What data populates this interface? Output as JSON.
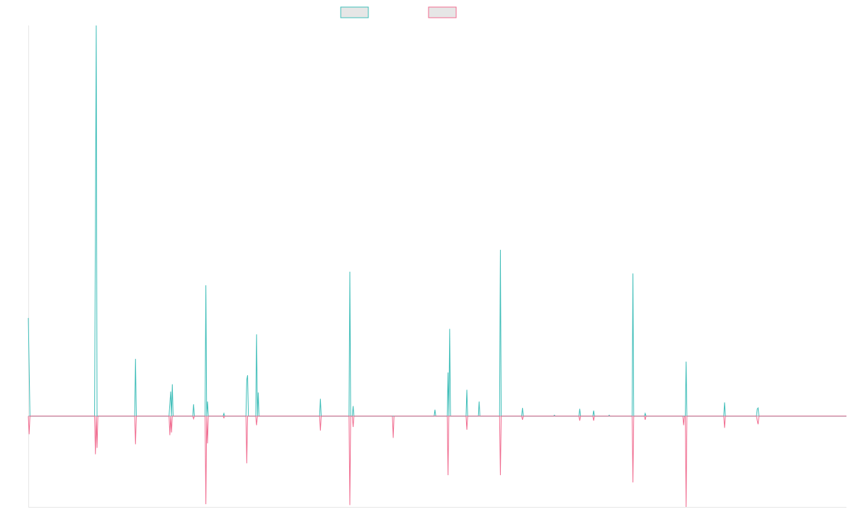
{
  "chart_data": {
    "type": "line",
    "title": "",
    "xlabel": "",
    "ylabel": "",
    "x_range": [
      0,
      1000
    ],
    "y_range": [
      -100,
      430
    ],
    "grid": false,
    "legend_position": "top-center",
    "baseline": 0,
    "series": [
      {
        "color": "#3dbdb8",
        "legend_fill": "#e6e6e6",
        "points": [
          [
            0,
            108
          ],
          [
            2,
            0
          ],
          [
            12,
            0
          ],
          [
            60,
            0
          ],
          [
            81,
            0
          ],
          [
            83,
            430
          ],
          [
            84,
            0
          ],
          [
            130,
            0
          ],
          [
            131,
            63
          ],
          [
            132,
            0
          ],
          [
            172,
            0
          ],
          [
            174,
            27
          ],
          [
            175,
            0
          ],
          [
            176,
            35
          ],
          [
            177,
            0
          ],
          [
            201,
            0
          ],
          [
            202,
            13
          ],
          [
            203,
            0
          ],
          [
            216,
            0
          ],
          [
            217,
            144
          ],
          [
            218,
            0
          ],
          [
            219,
            16
          ],
          [
            220,
            0
          ],
          [
            238,
            0
          ],
          [
            239,
            3
          ],
          [
            240,
            0
          ],
          [
            266,
            0
          ],
          [
            267,
            40
          ],
          [
            268,
            45
          ],
          [
            269,
            0
          ],
          [
            278,
            0
          ],
          [
            279,
            90
          ],
          [
            280,
            0
          ],
          [
            281,
            26
          ],
          [
            282,
            0
          ],
          [
            356,
            0
          ],
          [
            357,
            19
          ],
          [
            358,
            0
          ],
          [
            392,
            0
          ],
          [
            393,
            159
          ],
          [
            394,
            0
          ],
          [
            396,
            0
          ],
          [
            397,
            11
          ],
          [
            398,
            0
          ],
          [
            445,
            0
          ],
          [
            446,
            0
          ],
          [
            496,
            0
          ],
          [
            497,
            7
          ],
          [
            498,
            0
          ],
          [
            512,
            0
          ],
          [
            513,
            48
          ],
          [
            514,
            0
          ],
          [
            515,
            96
          ],
          [
            516,
            0
          ],
          [
            535,
            0
          ],
          [
            536,
            29
          ],
          [
            537,
            0
          ],
          [
            550,
            0
          ],
          [
            551,
            16
          ],
          [
            552,
            0
          ],
          [
            576,
            0
          ],
          [
            577,
            183
          ],
          [
            578,
            0
          ],
          [
            603,
            0
          ],
          [
            604,
            9
          ],
          [
            605,
            0
          ],
          [
            642,
            0
          ],
          [
            643,
            1
          ],
          [
            644,
            0
          ],
          [
            673,
            0
          ],
          [
            674,
            8
          ],
          [
            675,
            0
          ],
          [
            690,
            0
          ],
          [
            691,
            6
          ],
          [
            692,
            0
          ],
          [
            709,
            0
          ],
          [
            710,
            1
          ],
          [
            711,
            0
          ],
          [
            738,
            0
          ],
          [
            739,
            157
          ],
          [
            740,
            0
          ],
          [
            753,
            0
          ],
          [
            754,
            3
          ],
          [
            755,
            0
          ],
          [
            803,
            0
          ],
          [
            804,
            60
          ],
          [
            805,
            0
          ],
          [
            850,
            0
          ],
          [
            851,
            15
          ],
          [
            852,
            0
          ],
          [
            890,
            0
          ],
          [
            891,
            8
          ],
          [
            892,
            9
          ],
          [
            893,
            0
          ],
          [
            1000,
            0
          ]
        ]
      },
      {
        "color": "#f06b8f",
        "legend_fill": "#e6e6e6",
        "points": [
          [
            0,
            0
          ],
          [
            1,
            -20
          ],
          [
            2,
            0
          ],
          [
            81,
            0
          ],
          [
            82,
            -42
          ],
          [
            83,
            0
          ],
          [
            84,
            -35
          ],
          [
            85,
            0
          ],
          [
            130,
            0
          ],
          [
            131,
            -31
          ],
          [
            132,
            0
          ],
          [
            172,
            0
          ],
          [
            173,
            -21
          ],
          [
            174,
            0
          ],
          [
            175,
            -18
          ],
          [
            176,
            0
          ],
          [
            201,
            0
          ],
          [
            202,
            -3
          ],
          [
            203,
            0
          ],
          [
            216,
            0
          ],
          [
            217,
            -97
          ],
          [
            218,
            0
          ],
          [
            219,
            -30
          ],
          [
            220,
            0
          ],
          [
            238,
            0
          ],
          [
            239,
            -2
          ],
          [
            240,
            0
          ],
          [
            266,
            0
          ],
          [
            267,
            -52
          ],
          [
            268,
            0
          ],
          [
            278,
            0
          ],
          [
            279,
            -10
          ],
          [
            280,
            0
          ],
          [
            356,
            0
          ],
          [
            357,
            -16
          ],
          [
            358,
            0
          ],
          [
            392,
            0
          ],
          [
            393,
            -98
          ],
          [
            394,
            0
          ],
          [
            396,
            0
          ],
          [
            397,
            -12
          ],
          [
            398,
            0
          ],
          [
            445,
            0
          ],
          [
            446,
            -24
          ],
          [
            447,
            0
          ],
          [
            512,
            0
          ],
          [
            513,
            -65
          ],
          [
            514,
            0
          ],
          [
            535,
            0
          ],
          [
            536,
            -15
          ],
          [
            537,
            0
          ],
          [
            576,
            0
          ],
          [
            577,
            -65
          ],
          [
            578,
            0
          ],
          [
            603,
            0
          ],
          [
            604,
            -4
          ],
          [
            605,
            0
          ],
          [
            673,
            0
          ],
          [
            674,
            -5
          ],
          [
            675,
            0
          ],
          [
            690,
            0
          ],
          [
            691,
            -5
          ],
          [
            692,
            0
          ],
          [
            738,
            0
          ],
          [
            739,
            -73
          ],
          [
            740,
            0
          ],
          [
            753,
            0
          ],
          [
            754,
            -4
          ],
          [
            755,
            0
          ],
          [
            800,
            0
          ],
          [
            801,
            -10
          ],
          [
            802,
            0
          ],
          [
            803,
            0
          ],
          [
            804,
            -100
          ],
          [
            805,
            0
          ],
          [
            850,
            0
          ],
          [
            851,
            -13
          ],
          [
            852,
            0
          ],
          [
            890,
            0
          ],
          [
            891,
            -5
          ],
          [
            892,
            -9
          ],
          [
            893,
            0
          ],
          [
            1000,
            0
          ]
        ]
      }
    ]
  }
}
